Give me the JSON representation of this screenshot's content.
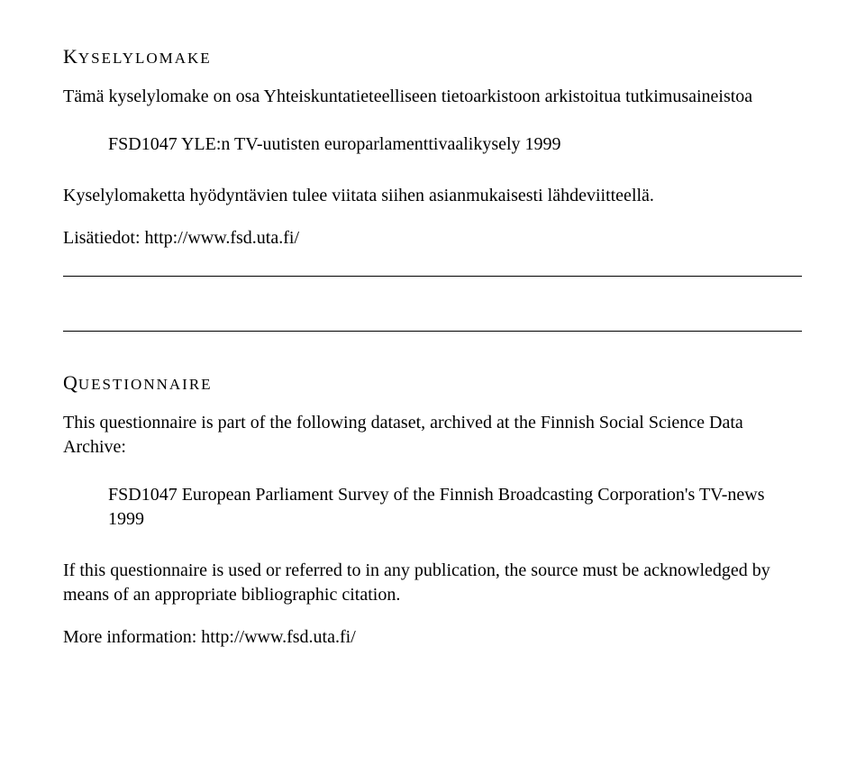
{
  "section1": {
    "heading_first": "K",
    "heading_rest": "YSELYLOMAKE",
    "intro": "Tämä kyselylomake on osa Yhteiskuntatieteelliseen tietoarkistoon arkistoitua tutkimusaineistoa",
    "dataset": "FSD1047 YLE:n TV-uutisten europarlamenttivaalikysely 1999",
    "cite": "Kyselylomaketta hyödyntävien tulee viitata siihen asianmukaisesti lähdeviitteellä.",
    "moreinfo": "Lisätiedot: http://www.fsd.uta.fi/"
  },
  "section2": {
    "heading_first": "Q",
    "heading_rest": "UESTIONNAIRE",
    "intro": "This questionnaire is part of the following dataset, archived at the Finnish Social Science Data Archive:",
    "dataset": "FSD1047 European Parliament Survey of the Finnish Broadcasting Corporation's TV-news 1999",
    "cite": "If this questionnaire is used or referred to in any publication, the source must be acknowledged by means of an appropriate bibliographic citation.",
    "moreinfo": "More information: http://www.fsd.uta.fi/"
  }
}
